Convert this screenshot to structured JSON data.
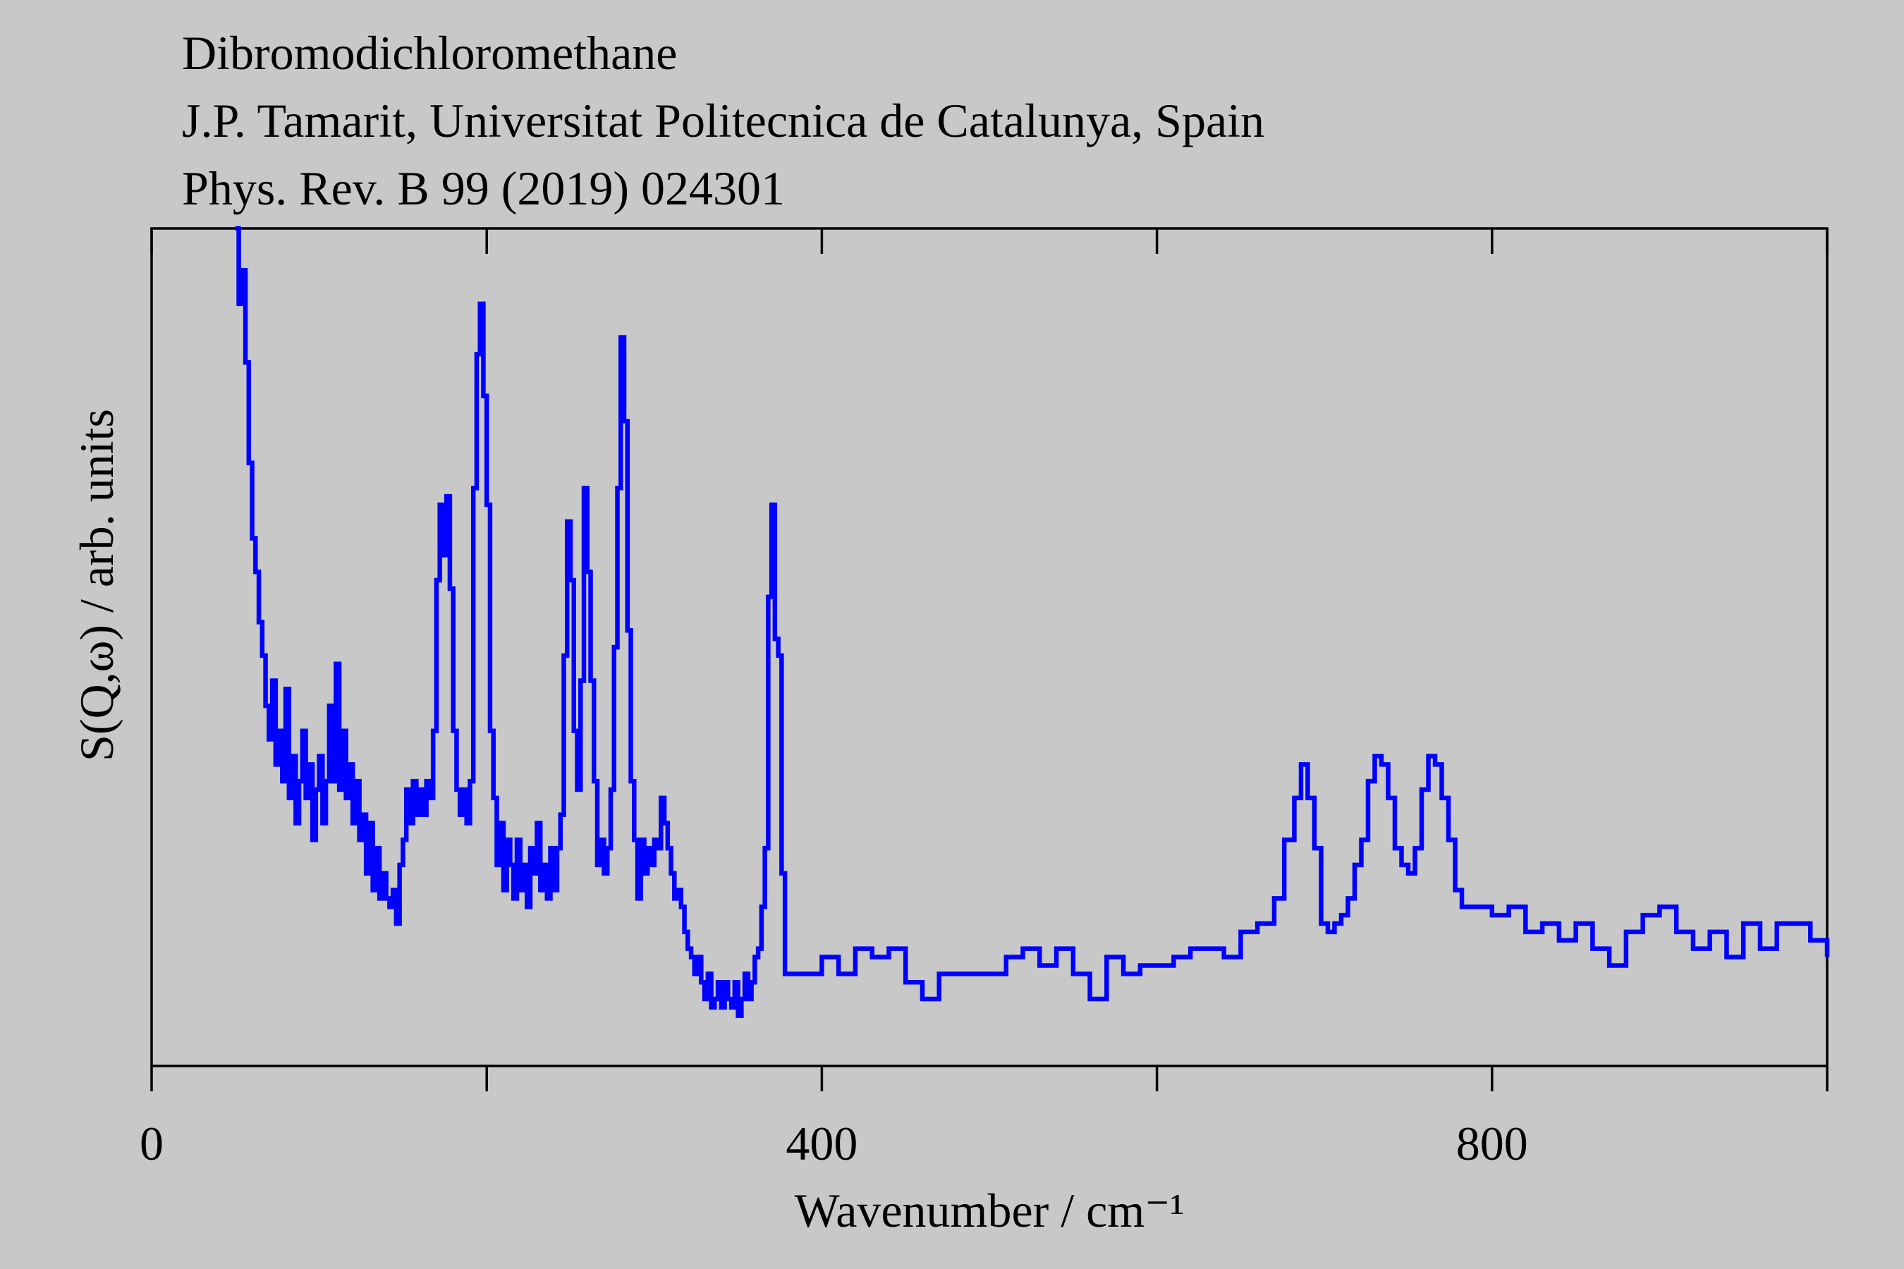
{
  "chart_data": {
    "type": "line",
    "title_lines": [
      "Dibromodichloromethane",
      "J.P. Tamarit, Universitat Politecnica de Catalunya, Spain",
      "Phys. Rev. B 99 (2019) 024301"
    ],
    "x_label": "Wavenumber / cm⁻¹",
    "y_label": "S(Q,ω) / arb. units",
    "xlim": [
      0,
      1000
    ],
    "xticks": [
      0,
      400,
      800
    ],
    "xminor": [
      200,
      600,
      1000
    ],
    "ylim": [
      0,
      1
    ],
    "drawstyle": "steps-post",
    "series": [
      {
        "name": "Dibromodichloromethane",
        "color": "#0000ff",
        "x": [
          50,
          52,
          54,
          56,
          58,
          60,
          62,
          64,
          66,
          68,
          70,
          72,
          74,
          76,
          78,
          80,
          82,
          84,
          86,
          88,
          90,
          92,
          94,
          96,
          98,
          100,
          102,
          104,
          106,
          108,
          110,
          112,
          114,
          116,
          118,
          120,
          122,
          124,
          126,
          128,
          130,
          132,
          134,
          136,
          138,
          140,
          142,
          144,
          146,
          148,
          150,
          152,
          154,
          156,
          158,
          160,
          162,
          164,
          166,
          168,
          170,
          172,
          174,
          176,
          178,
          180,
          182,
          184,
          186,
          188,
          190,
          192,
          194,
          196,
          198,
          200,
          202,
          204,
          206,
          208,
          210,
          212,
          214,
          216,
          218,
          220,
          222,
          224,
          226,
          228,
          230,
          232,
          234,
          236,
          238,
          240,
          242,
          244,
          246,
          248,
          250,
          252,
          254,
          256,
          258,
          260,
          262,
          264,
          266,
          268,
          270,
          272,
          274,
          276,
          278,
          280,
          282,
          284,
          286,
          288,
          290,
          292,
          294,
          296,
          298,
          300,
          302,
          304,
          306,
          308,
          310,
          312,
          314,
          316,
          318,
          320,
          322,
          324,
          326,
          328,
          330,
          332,
          334,
          336,
          338,
          340,
          342,
          344,
          346,
          348,
          350,
          352,
          354,
          356,
          358,
          360,
          362,
          364,
          366,
          368,
          370,
          372,
          374,
          376,
          378,
          380,
          390,
          400,
          410,
          420,
          430,
          440,
          450,
          460,
          470,
          480,
          490,
          500,
          510,
          520,
          530,
          540,
          550,
          560,
          570,
          580,
          590,
          600,
          610,
          620,
          630,
          640,
          650,
          660,
          670,
          676,
          682,
          686,
          690,
          694,
          698,
          702,
          706,
          710,
          714,
          718,
          722,
          726,
          730,
          734,
          738,
          742,
          746,
          750,
          754,
          758,
          762,
          766,
          770,
          774,
          778,
          782,
          790,
          800,
          810,
          820,
          830,
          840,
          850,
          860,
          870,
          880,
          890,
          900,
          910,
          920,
          930,
          940,
          950,
          960,
          970,
          980,
          990,
          1000
        ],
        "values": [
          1.0,
          0.91,
          0.95,
          0.84,
          0.72,
          0.63,
          0.59,
          0.53,
          0.49,
          0.43,
          0.39,
          0.46,
          0.36,
          0.4,
          0.34,
          0.45,
          0.32,
          0.37,
          0.29,
          0.34,
          0.4,
          0.32,
          0.36,
          0.27,
          0.33,
          0.37,
          0.29,
          0.34,
          0.43,
          0.34,
          0.48,
          0.33,
          0.4,
          0.32,
          0.36,
          0.29,
          0.34,
          0.27,
          0.3,
          0.23,
          0.29,
          0.21,
          0.26,
          0.2,
          0.23,
          0.2,
          0.19,
          0.21,
          0.17,
          0.24,
          0.27,
          0.33,
          0.29,
          0.34,
          0.3,
          0.33,
          0.3,
          0.34,
          0.32,
          0.4,
          0.58,
          0.67,
          0.61,
          0.68,
          0.57,
          0.4,
          0.33,
          0.3,
          0.33,
          0.29,
          0.34,
          0.69,
          0.85,
          0.91,
          0.8,
          0.67,
          0.4,
          0.32,
          0.24,
          0.29,
          0.21,
          0.27,
          0.24,
          0.2,
          0.27,
          0.21,
          0.24,
          0.19,
          0.26,
          0.23,
          0.29,
          0.21,
          0.24,
          0.2,
          0.26,
          0.21,
          0.26,
          0.3,
          0.49,
          0.65,
          0.58,
          0.4,
          0.33,
          0.46,
          0.69,
          0.59,
          0.46,
          0.34,
          0.24,
          0.27,
          0.23,
          0.26,
          0.33,
          0.5,
          0.69,
          0.87,
          0.77,
          0.52,
          0.34,
          0.27,
          0.2,
          0.27,
          0.23,
          0.26,
          0.24,
          0.27,
          0.26,
          0.32,
          0.29,
          0.26,
          0.23,
          0.2,
          0.21,
          0.19,
          0.16,
          0.14,
          0.13,
          0.11,
          0.13,
          0.1,
          0.08,
          0.11,
          0.07,
          0.08,
          0.1,
          0.07,
          0.1,
          0.08,
          0.07,
          0.1,
          0.06,
          0.08,
          0.11,
          0.08,
          0.1,
          0.13,
          0.14,
          0.19,
          0.26,
          0.56,
          0.67,
          0.51,
          0.49,
          0.23,
          0.11,
          0.11,
          0.11,
          0.13,
          0.11,
          0.14,
          0.13,
          0.14,
          0.1,
          0.08,
          0.11,
          0.11,
          0.11,
          0.11,
          0.13,
          0.14,
          0.12,
          0.14,
          0.11,
          0.08,
          0.13,
          0.11,
          0.12,
          0.12,
          0.13,
          0.14,
          0.14,
          0.13,
          0.16,
          0.17,
          0.2,
          0.27,
          0.32,
          0.36,
          0.32,
          0.26,
          0.17,
          0.16,
          0.17,
          0.18,
          0.2,
          0.24,
          0.27,
          0.34,
          0.37,
          0.36,
          0.32,
          0.26,
          0.24,
          0.23,
          0.26,
          0.33,
          0.37,
          0.36,
          0.32,
          0.27,
          0.21,
          0.19,
          0.19,
          0.18,
          0.19,
          0.16,
          0.17,
          0.15,
          0.17,
          0.14,
          0.12,
          0.16,
          0.18,
          0.19,
          0.16,
          0.14,
          0.16,
          0.13,
          0.17,
          0.14,
          0.17,
          0.17,
          0.15,
          0.13
        ]
      }
    ]
  }
}
